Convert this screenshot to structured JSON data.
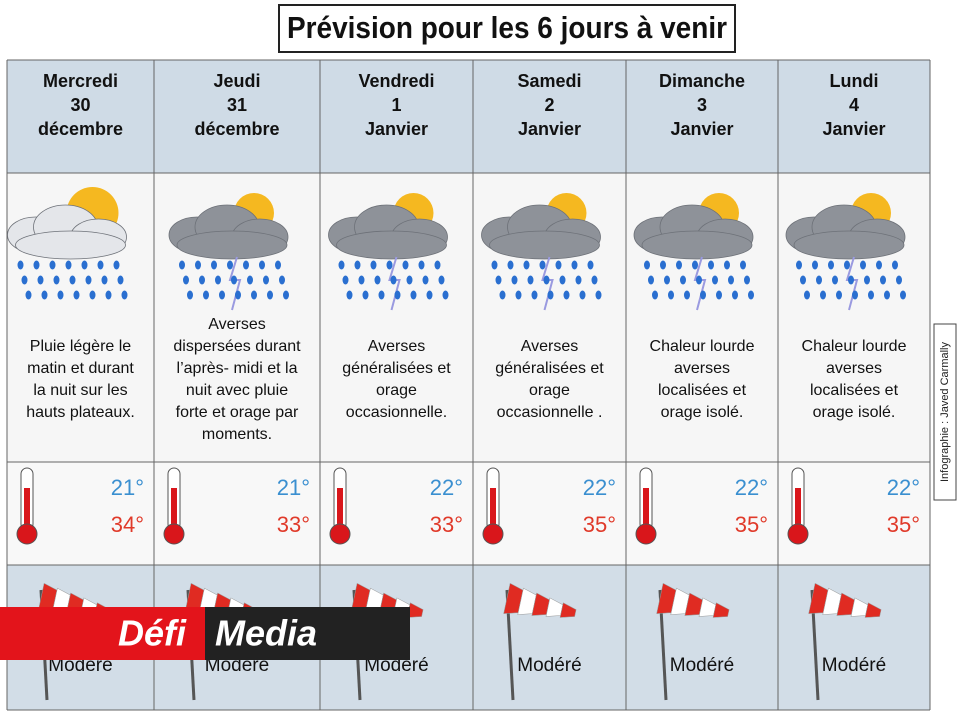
{
  "title": "Prévision pour les 6 jours à venir",
  "days": [
    {
      "day": "Mercredi",
      "date": "30",
      "month": "décembre",
      "forecast": [
        "Pluie légère le",
        "matin et durant",
        "la nuit sur les",
        "hauts plateaux."
      ],
      "min": "21°",
      "max": "34°",
      "wind": "Modéré"
    },
    {
      "day": "Jeudi",
      "date": "31",
      "month": "décembre",
      "forecast": [
        "Averses",
        "dispersées durant",
        "l’après- midi et la",
        "nuit avec pluie",
        "forte et orage par",
        "moments."
      ],
      "min": "21°",
      "max": "33°",
      "wind": "Modéré"
    },
    {
      "day": "Vendredi",
      "date": "1",
      "month": "Janvier",
      "forecast": [
        "Averses",
        "généralisées et",
        "orage",
        "occasionnelle."
      ],
      "min": "22°",
      "max": "33°",
      "wind": "Modéré"
    },
    {
      "day": "Samedi",
      "date": "2",
      "month": "Janvier",
      "forecast": [
        "Averses",
        "généralisées et",
        "orage",
        "occasionnelle ."
      ],
      "min": "22°",
      "max": "35°",
      "wind": "Modéré"
    },
    {
      "day": "Dimanche",
      "date": "3",
      "month": "Janvier",
      "forecast": [
        "Chaleur lourde",
        "averses",
        "localisées et",
        "orage isolé."
      ],
      "min": "22°",
      "max": "35°",
      "wind": "Modéré"
    },
    {
      "day": "Lundi",
      "date": "4",
      "month": "Janvier",
      "forecast": [
        "Chaleur lourde",
        "averses",
        "localisées et",
        "orage isolé."
      ],
      "min": "22°",
      "max": "35°",
      "wind": "Modéré"
    }
  ],
  "credit": "Infographie : Javed Carmally",
  "logo": {
    "part1": "Défi",
    "part2": "Media"
  }
}
